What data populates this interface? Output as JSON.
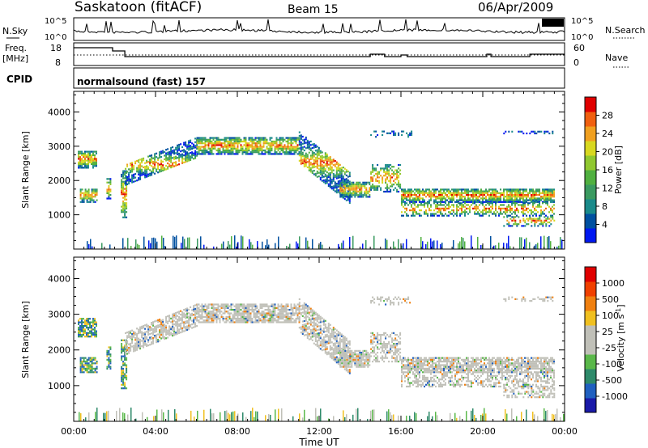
{
  "header": {
    "station": "Saskatoon (fitACF)",
    "beam": "Beam 15",
    "date": "06/Apr/2009"
  },
  "noise_panel": {
    "left_label": "N.Sky",
    "right_label": "N.Search",
    "left_ticks": [
      "10^5",
      "10^0"
    ],
    "right_ticks": [
      "10^5",
      "10^0"
    ]
  },
  "freq_panel": {
    "left_label_1": "Freq.",
    "left_label_2": "[MHz]",
    "left_ticks": [
      "18",
      "8"
    ],
    "right_label": "Nave",
    "right_ticks": [
      "60",
      "0"
    ]
  },
  "cpid": {
    "label": "CPID",
    "program": "normalsound (fast) 157"
  },
  "chart_data": [
    {
      "type": "heatmap",
      "xlabel": "",
      "ylabel": "Slant Range [km]",
      "x_range_hours": [
        0,
        24
      ],
      "ylim": [
        0,
        4600
      ],
      "yticks": [
        "1000",
        "2000",
        "3000",
        "4000"
      ],
      "colorbar": {
        "label": "Power [dB]",
        "ticks": [
          "28",
          "24",
          "20",
          "16",
          "12",
          "8",
          "4"
        ],
        "colors": [
          "#0018f0",
          "#0050a0",
          "#1a8a8a",
          "#3a9a60",
          "#50b040",
          "#90c830",
          "#d8d820",
          "#f0a020",
          "#f06010",
          "#e00000"
        ]
      }
    },
    {
      "type": "heatmap",
      "xlabel": "Time UT",
      "ylabel": "Slant Range [km]",
      "x_range_hours": [
        0,
        24
      ],
      "ylim": [
        0,
        4600
      ],
      "xticks": [
        "00:00",
        "04:00",
        "08:00",
        "12:00",
        "16:00",
        "20:00",
        "00:00"
      ],
      "yticks": [
        "1000",
        "2000",
        "3000",
        "4000"
      ],
      "colorbar": {
        "label": "Velocity [m s^-1]",
        "ticks": [
          "1000",
          "500",
          "100",
          "25",
          "-25",
          "-100",
          "-500",
          "-1000"
        ],
        "colors": [
          "#1a1aa8",
          "#2060c0",
          "#2e8a6a",
          "#5ab84a",
          "#c0c0b8",
          "#c0c0b8",
          "#f0c020",
          "#f08010",
          "#f04000",
          "#e00000"
        ]
      }
    }
  ]
}
